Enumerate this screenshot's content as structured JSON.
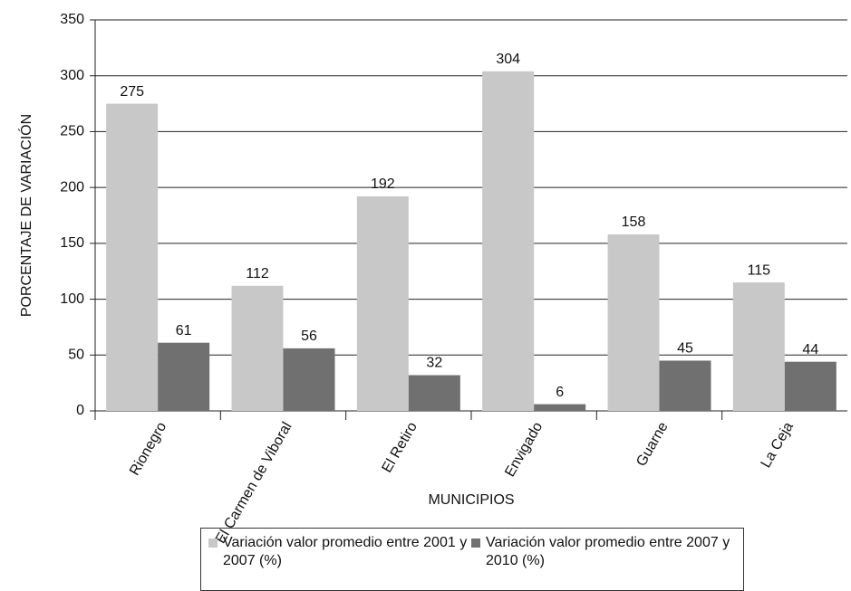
{
  "chart_data": {
    "type": "bar",
    "y_label": "PORCENTAJE DE VARIACIÓN",
    "x_label": "MUNICIPIOS",
    "categories": [
      "Rionegro",
      "El Carmen de Viboral",
      "El Retiro",
      "Envigado",
      "Guarne",
      "La Ceja"
    ],
    "series": [
      {
        "name": "Variación valor promedio entre 2001 y 2007 (%)",
        "color": "#c8c8c8",
        "values": [
          275,
          112,
          192,
          304,
          158,
          115
        ]
      },
      {
        "name": "Variación valor promedio entre 2007 y 2010 (%)",
        "color": "#707070",
        "values": [
          61,
          56,
          32,
          6,
          45,
          44
        ]
      }
    ],
    "ylim": [
      0,
      350
    ],
    "yticks": [
      0,
      50,
      100,
      150,
      200,
      250,
      300,
      350
    ],
    "grid": true,
    "legend": "bottom"
  }
}
